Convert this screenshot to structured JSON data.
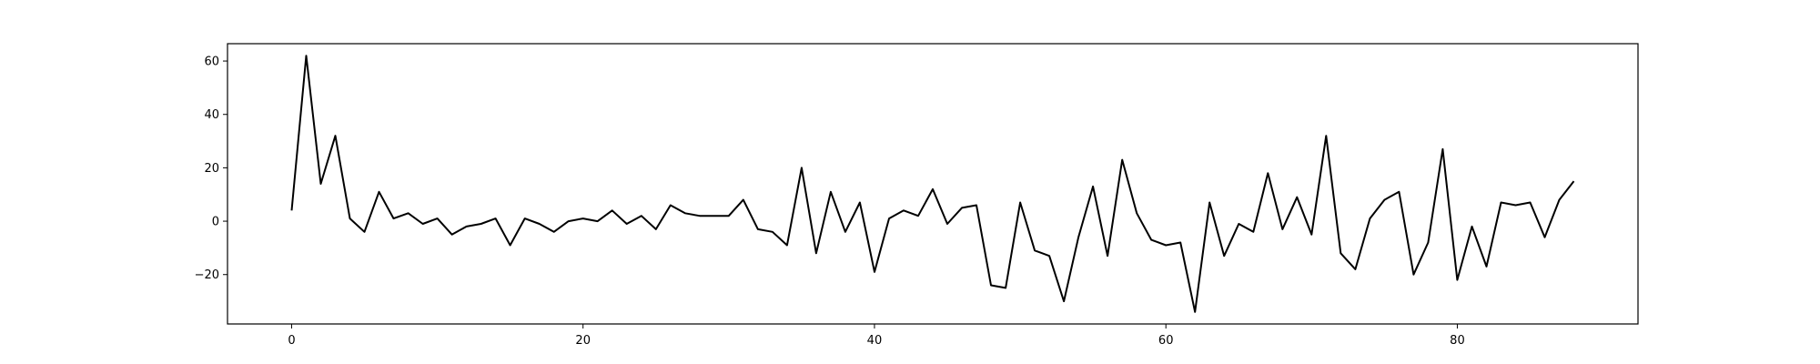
{
  "chart_data": {
    "type": "line",
    "title": "",
    "xlabel": "",
    "ylabel": "",
    "xlim": [
      -4.4,
      92.4
    ],
    "ylim": [
      -38.5,
      66.5
    ],
    "xticks": [
      0,
      20,
      40,
      60,
      80
    ],
    "yticks": [
      -20,
      0,
      20,
      40,
      60
    ],
    "grid": false,
    "legend": null,
    "series": [
      {
        "color": "#000000",
        "x": [
          0,
          1,
          2,
          3,
          4,
          5,
          6,
          7,
          8,
          9,
          10,
          11,
          12,
          13,
          14,
          15,
          16,
          17,
          18,
          19,
          20,
          21,
          22,
          23,
          24,
          25,
          26,
          27,
          28,
          29,
          30,
          31,
          32,
          33,
          34,
          35,
          36,
          37,
          38,
          39,
          40,
          41,
          42,
          43,
          44,
          45,
          46,
          47,
          48,
          49,
          50,
          51,
          52,
          53,
          54,
          55,
          56,
          57,
          58,
          59,
          60,
          61,
          62,
          63,
          64,
          65,
          66,
          67,
          68,
          69,
          70,
          71,
          72,
          73,
          74,
          75,
          76,
          77,
          78,
          79,
          80,
          81,
          82,
          83,
          84,
          85,
          86,
          87,
          88
        ],
        "values": [
          4,
          62,
          14,
          32,
          1,
          -4,
          11,
          1,
          3,
          -1,
          1,
          -5,
          -2,
          -1,
          1,
          -9,
          1,
          -1,
          -4,
          0,
          1,
          0,
          4,
          -1,
          2,
          -3,
          6,
          3,
          2,
          2,
          2,
          8,
          -3,
          -4,
          -9,
          20,
          -12,
          11,
          -4,
          7,
          -19,
          1,
          4,
          2,
          12,
          -1,
          5,
          6,
          -24,
          -25,
          7,
          -11,
          -13,
          -30,
          -6,
          13,
          -13,
          23,
          3,
          -7,
          -9,
          -8,
          -34,
          7,
          -13,
          -1,
          -4,
          18,
          -3,
          9,
          -5,
          32,
          -12,
          -18,
          1,
          8,
          11,
          -20,
          -8,
          27,
          -22,
          -2,
          -17,
          7,
          6,
          7,
          -6,
          8,
          15
        ]
      }
    ]
  }
}
